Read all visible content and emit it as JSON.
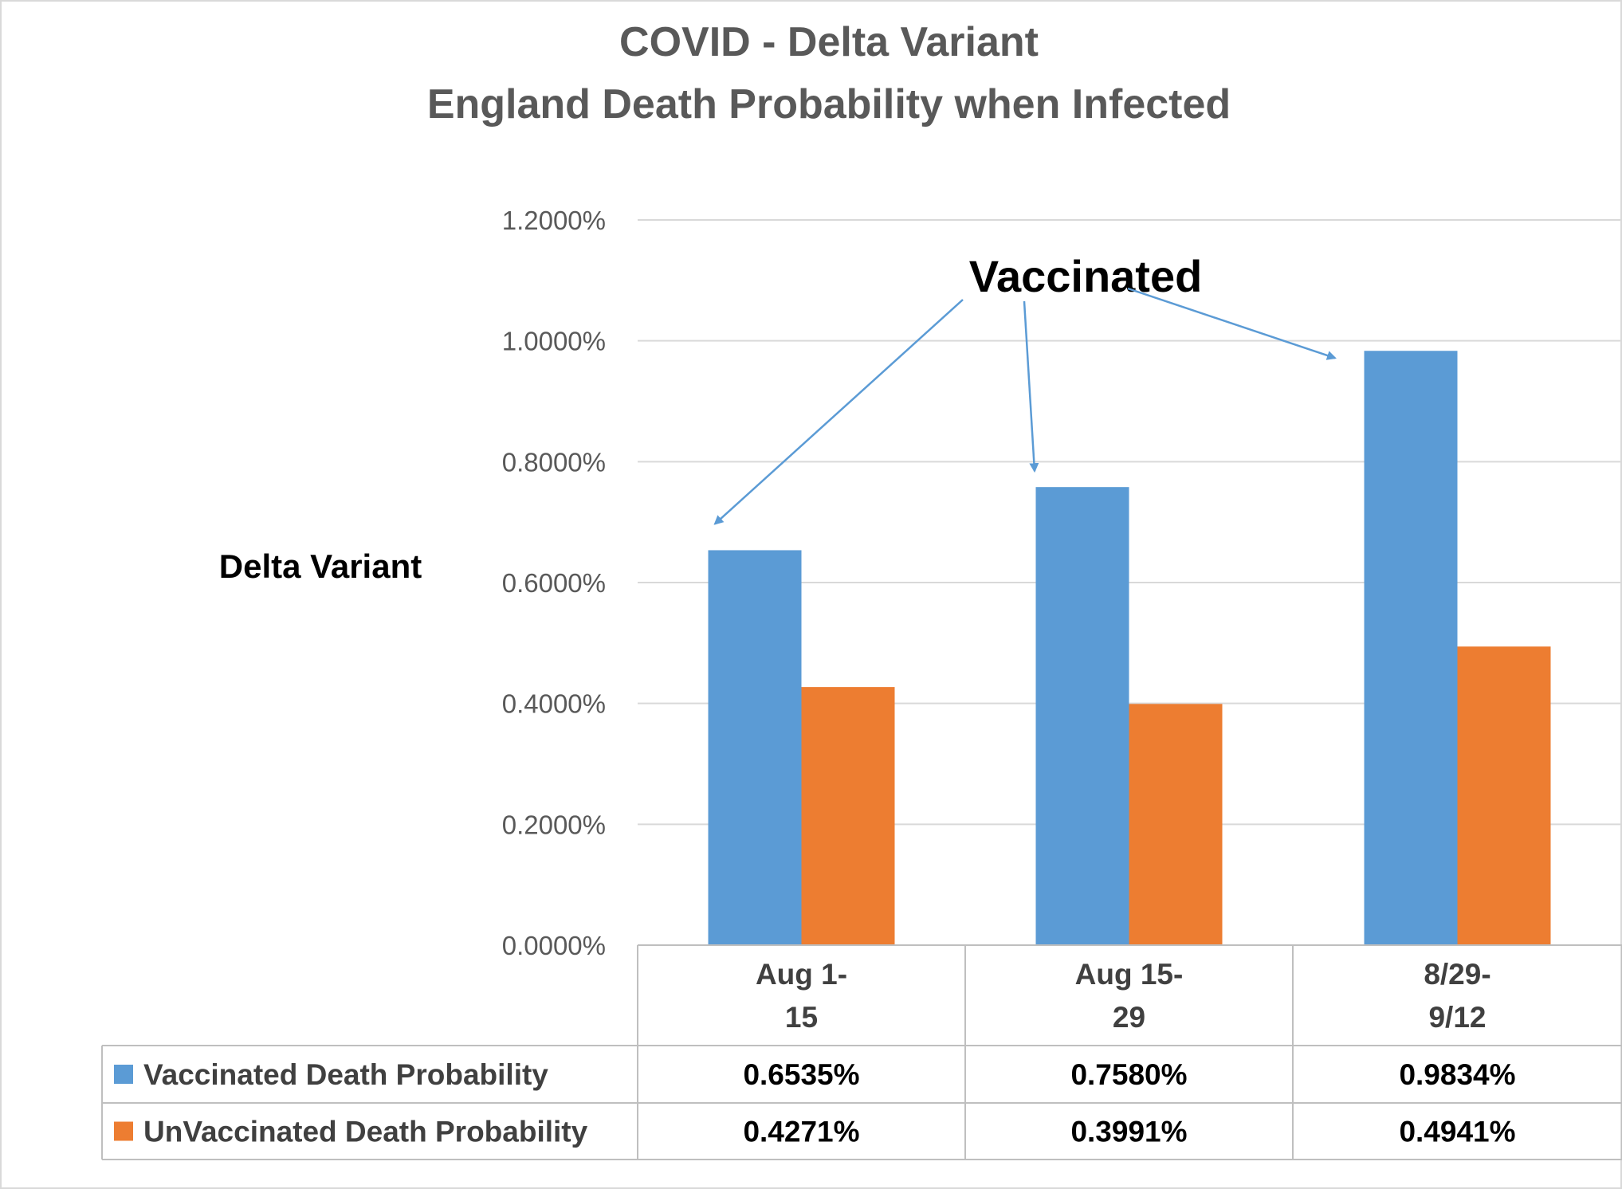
{
  "chart_data": {
    "type": "bar",
    "title": [
      "COVID - Delta Variant",
      "England Death Probability when Infected"
    ],
    "ylabel": "Delta Variant",
    "xlabel": "",
    "ylim": [
      0,
      1.2
    ],
    "yticks": [
      0,
      0.2,
      0.4,
      0.6,
      0.8,
      1.0,
      1.2
    ],
    "ytick_labels": [
      "0.0000%",
      "0.2000%",
      "0.4000%",
      "0.6000%",
      "0.8000%",
      "1.0000%",
      "1.2000%"
    ],
    "categories": [
      [
        "Aug 1-",
        "15"
      ],
      [
        "Aug 15-",
        "29"
      ],
      [
        "8/29-",
        "9/12"
      ]
    ],
    "series": [
      {
        "name": "Vaccinated Death Probability",
        "values": [
          0.6535,
          0.758,
          0.9834
        ],
        "labels": [
          "0.6535%",
          "0.7580%",
          "0.9834%"
        ],
        "color": "#5B9BD5"
      },
      {
        "name": "UnVaccinated Death Probability",
        "values": [
          0.4271,
          0.3991,
          0.4941
        ],
        "labels": [
          "0.4271%",
          "0.3991%",
          "0.4941%"
        ],
        "color": "#ED7D31"
      }
    ],
    "annotation": {
      "text": "Vaccinated",
      "arrow_color": "#5B9BD5",
      "points_to_series": "Vaccinated Death Probability"
    },
    "grid": true,
    "legend": "data-table-bottom",
    "grid_color": "#D9D9D9"
  }
}
